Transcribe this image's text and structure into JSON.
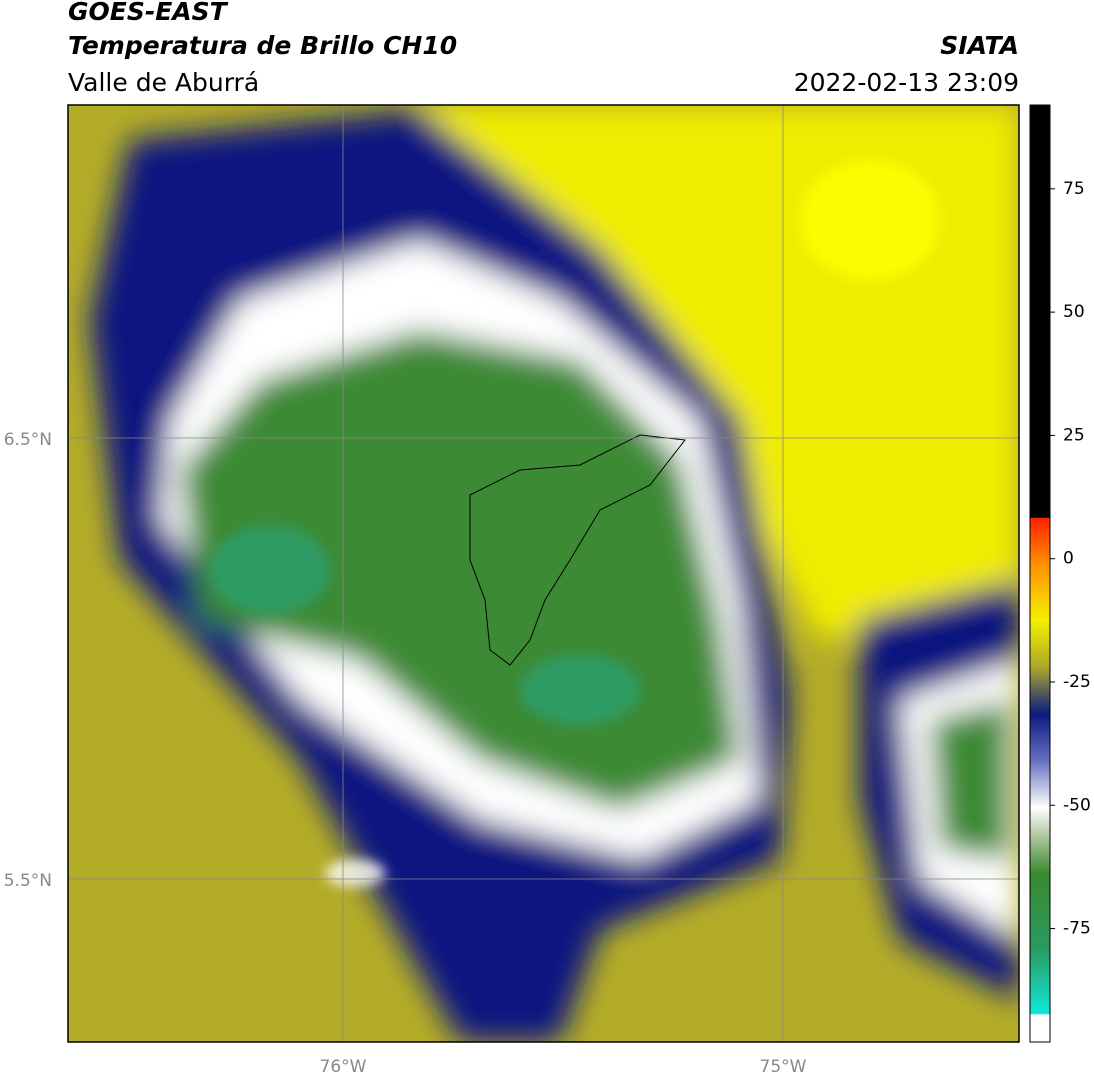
{
  "header": {
    "title": "GOES-EAST",
    "subtitle": "Temperatura de Brillo CH10",
    "region": "Valle de Aburrá",
    "source": "SIATA",
    "datetime": "2022-02-13 23:09"
  },
  "map": {
    "lat_labels": [
      "6.5°N",
      "5.5°N"
    ],
    "lon_labels": [
      "76°W",
      "75°W"
    ]
  },
  "colorbar": {
    "lim": [
      -98,
      92
    ],
    "ticks": [
      75,
      50,
      25,
      0,
      -25,
      -50,
      -75
    ]
  }
}
